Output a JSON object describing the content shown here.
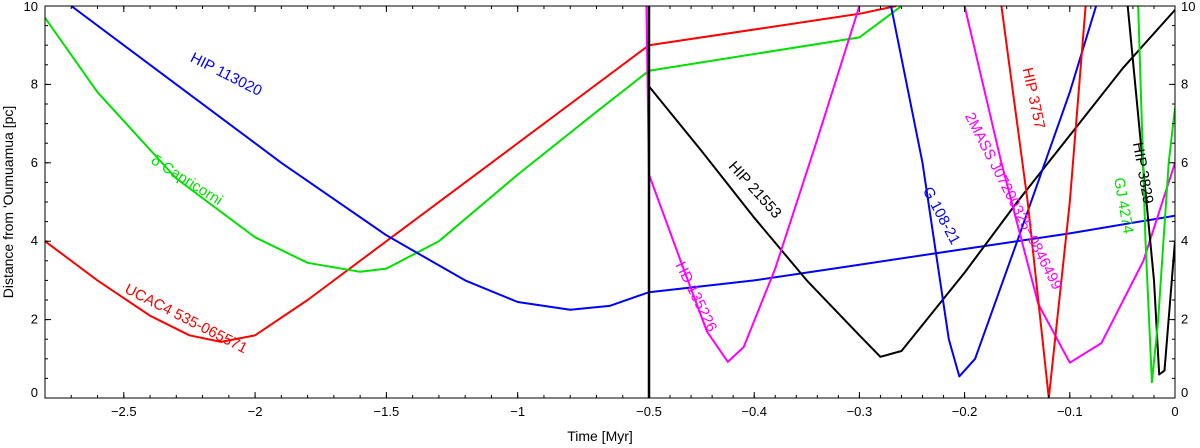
{
  "chart_data": {
    "type": "line",
    "title": "",
    "xlabel": "Time [Myr]",
    "ylabel": "Distance from 'Oumuamua [pc]",
    "xlim": [
      -2.8,
      0
    ],
    "ylim": [
      0,
      10
    ],
    "x_ticks": [
      -2.5,
      -2,
      -1.5,
      -1,
      -0.5,
      -0.4,
      -0.3,
      -0.2,
      -0.1,
      0.0
    ],
    "x_tick_labels": [
      "−2.5",
      "−2",
      "−1.5",
      "−1",
      "−0.5",
      "−0.4",
      "−0.3",
      "−0.2",
      "−0.1",
      "0"
    ],
    "y_ticks": [
      0,
      2,
      4,
      6,
      8,
      10
    ],
    "y_tick_labels": [
      "0",
      "2",
      "4",
      "6",
      "8",
      "10"
    ],
    "grid": false,
    "legend": "none",
    "scale_break_at": -0.5,
    "series": [
      {
        "name": "UCAC4 535-065571",
        "color": "#ff0000",
        "points": [
          [
            -2.8,
            4.0
          ],
          [
            -2.6,
            3.0
          ],
          [
            -2.4,
            2.1
          ],
          [
            -2.25,
            1.6
          ],
          [
            -2.13,
            1.43
          ],
          [
            -2.0,
            1.6
          ],
          [
            -1.8,
            2.5
          ],
          [
            -1.5,
            4.0
          ],
          [
            -1.0,
            6.5
          ],
          [
            -0.5,
            9.0
          ],
          [
            -0.3,
            9.8
          ],
          [
            -0.265,
            10.0
          ]
        ],
        "label_at": [
          -2.5,
          2.7
        ],
        "label_angle": 27
      },
      {
        "name": "δ Capricorni",
        "color": "#00e000",
        "points": [
          [
            -2.8,
            9.7
          ],
          [
            -2.6,
            7.8
          ],
          [
            -2.3,
            5.6
          ],
          [
            -2.0,
            4.1
          ],
          [
            -1.8,
            3.45
          ],
          [
            -1.6,
            3.22
          ],
          [
            -1.5,
            3.3
          ],
          [
            -1.3,
            4.0
          ],
          [
            -1.0,
            5.7
          ],
          [
            -0.7,
            7.3
          ],
          [
            -0.5,
            8.35
          ],
          [
            -0.3,
            9.2
          ],
          [
            -0.26,
            10.0
          ]
        ],
        "label_at": [
          -2.4,
          6.0
        ],
        "label_angle": 32
      },
      {
        "name": "HIP 113020",
        "color": "#0000ff",
        "points": [
          [
            -2.7,
            10.0
          ],
          [
            -2.3,
            8.0
          ],
          [
            -1.9,
            6.0
          ],
          [
            -1.5,
            4.15
          ],
          [
            -1.2,
            3.0
          ],
          [
            -1.0,
            2.45
          ],
          [
            -0.8,
            2.25
          ],
          [
            -0.65,
            2.35
          ],
          [
            -0.5,
            2.7
          ],
          [
            -0.4,
            3.0
          ],
          [
            -0.3,
            3.4
          ],
          [
            -0.2,
            3.8
          ],
          [
            -0.1,
            4.2
          ],
          [
            0.0,
            4.65
          ]
        ],
        "label_at": [
          -2.25,
          8.6
        ],
        "label_angle": 27
      },
      {
        "name": "HIP 21553",
        "color": "#000000",
        "points": [
          [
            -0.5,
            7.95
          ],
          [
            -0.45,
            6.3
          ],
          [
            -0.4,
            4.6
          ],
          [
            -0.35,
            3.0
          ],
          [
            -0.3,
            1.6
          ],
          [
            -0.28,
            1.05
          ],
          [
            -0.26,
            1.2
          ],
          [
            -0.2,
            3.2
          ],
          [
            -0.15,
            5.0
          ],
          [
            -0.1,
            6.7
          ],
          [
            -0.05,
            8.4
          ],
          [
            0.0,
            9.9
          ]
        ],
        "label_at": [
          -0.425,
          5.9
        ],
        "label_angle": 48
      },
      {
        "name": "HD 135226",
        "color": "#ff00ff",
        "points": [
          [
            -0.51,
            10.0
          ],
          [
            -0.5,
            5.7
          ],
          [
            -0.47,
            3.5
          ],
          [
            -0.445,
            1.7
          ],
          [
            -0.425,
            0.92
          ],
          [
            -0.41,
            1.3
          ],
          [
            -0.38,
            3.3
          ],
          [
            -0.34,
            6.6
          ],
          [
            -0.3,
            10.0
          ]
        ],
        "label_at": [
          -0.475,
          3.4
        ],
        "label_angle": 64
      },
      {
        "name": "G 108-21",
        "color": "#0000ff",
        "points": [
          [
            -0.27,
            10.0
          ],
          [
            -0.24,
            6.0
          ],
          [
            -0.215,
            1.5
          ],
          [
            -0.205,
            0.55
          ],
          [
            -0.19,
            1.0
          ],
          [
            -0.15,
            4.0
          ],
          [
            -0.1,
            7.8
          ],
          [
            -0.075,
            10.0
          ]
        ],
        "label_at": [
          -0.24,
          5.3
        ],
        "label_angle": 62
      },
      {
        "name": "2MASS J07200325−0846499",
        "color": "#ff00ff",
        "points": [
          [
            -0.2,
            10.0
          ],
          [
            -0.165,
            6.0
          ],
          [
            -0.13,
            2.4
          ],
          [
            -0.1,
            0.9
          ],
          [
            -0.07,
            1.4
          ],
          [
            -0.03,
            3.5
          ],
          [
            0.0,
            6.0
          ]
        ],
        "label_at": [
          -0.2,
          7.2
        ],
        "label_angle": 63
      },
      {
        "name": "HIP 3757",
        "color": "#ff0000",
        "points": [
          [
            -0.165,
            10.0
          ],
          [
            -0.14,
            5.0
          ],
          [
            -0.12,
            0.0
          ],
          [
            -0.1,
            5.0
          ],
          [
            -0.085,
            10.0
          ]
        ],
        "label_at": [
          -0.145,
          8.4
        ],
        "label_angle": 78
      },
      {
        "name": "HIP 3829",
        "color": "#000000",
        "points": [
          [
            -0.045,
            10.0
          ],
          [
            -0.02,
            3.0
          ],
          [
            -0.015,
            0.6
          ],
          [
            -0.01,
            0.7
          ],
          [
            -0.003,
            3.0
          ],
          [
            0.0,
            4.0
          ]
        ],
        "label_at": [
          -0.04,
          6.5
        ],
        "label_angle": 80
      },
      {
        "name": "GJ 4274",
        "color": "#00e000",
        "points": [
          [
            -0.035,
            10.0
          ],
          [
            -0.028,
            4.0
          ],
          [
            -0.022,
            0.4
          ],
          [
            -0.016,
            2.0
          ],
          [
            -0.006,
            6.0
          ],
          [
            0.0,
            7.4
          ]
        ],
        "label_at": [
          -0.058,
          5.6
        ],
        "label_angle": 80
      }
    ],
    "break_marker_color": "#000000"
  }
}
